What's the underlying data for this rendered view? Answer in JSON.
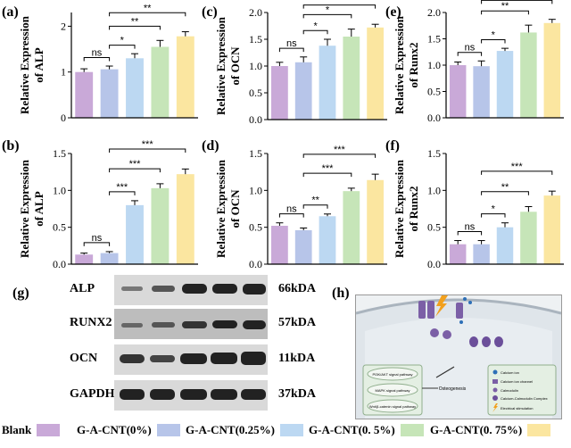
{
  "colors": {
    "blank": "#c9a9d8",
    "g0": "#b7c5e9",
    "g025": "#bcd8f2",
    "g05": "#c6e5b8",
    "g075": "#fbe6a0"
  },
  "chart_data": [
    {
      "panel": "(a)",
      "type": "bar",
      "ylabel": "Relative Expression of ALP",
      "ylim": [
        0,
        2.3
      ],
      "ticks": [
        "0",
        "1",
        "2"
      ],
      "tickvals": [
        0,
        1,
        2
      ],
      "values": [
        1.0,
        1.06,
        1.3,
        1.55,
        1.78
      ],
      "errors": [
        0.07,
        0.07,
        0.1,
        0.14,
        0.1
      ],
      "brackets": [
        {
          "from": 0,
          "to": 1,
          "label": "ns"
        },
        {
          "from": 1,
          "to": 2,
          "label": "*"
        },
        {
          "from": 1,
          "to": 3,
          "label": "**"
        },
        {
          "from": 1,
          "to": 4,
          "label": "**"
        }
      ]
    },
    {
      "panel": "(b)",
      "type": "bar",
      "ylabel": "Relative Expression of ALP",
      "ylim": [
        0,
        1.5
      ],
      "ticks": [
        "0.0",
        "0.5",
        "1.0",
        "1.5"
      ],
      "tickvals": [
        0,
        0.5,
        1.0,
        1.5
      ],
      "values": [
        0.13,
        0.15,
        0.8,
        1.03,
        1.22
      ],
      "errors": [
        0.02,
        0.02,
        0.06,
        0.06,
        0.07
      ],
      "brackets": [
        {
          "from": 0,
          "to": 1,
          "label": "ns"
        },
        {
          "from": 1,
          "to": 2,
          "label": "***"
        },
        {
          "from": 1,
          "to": 3,
          "label": "***"
        },
        {
          "from": 1,
          "to": 4,
          "label": "***"
        }
      ]
    },
    {
      "panel": "(c)",
      "type": "bar",
      "ylabel": "Relative Expression of OCN",
      "ylim": [
        0,
        2.0
      ],
      "ticks": [
        "0.0",
        "0.5",
        "1.0",
        "1.5",
        "2.0"
      ],
      "tickvals": [
        0,
        0.5,
        1.0,
        1.5,
        2.0
      ],
      "values": [
        1.0,
        1.07,
        1.38,
        1.55,
        1.72
      ],
      "errors": [
        0.07,
        0.1,
        0.12,
        0.14,
        0.06
      ],
      "brackets": [
        {
          "from": 0,
          "to": 1,
          "label": "ns"
        },
        {
          "from": 1,
          "to": 2,
          "label": "*"
        },
        {
          "from": 1,
          "to": 3,
          "label": "*"
        },
        {
          "from": 1,
          "to": 4,
          "label": "**"
        }
      ]
    },
    {
      "panel": "(d)",
      "type": "bar",
      "ylabel": "Relative Expression of OCN",
      "ylim": [
        0,
        1.5
      ],
      "ticks": [
        "0.0",
        "0.5",
        "1.0",
        "1.5"
      ],
      "tickvals": [
        0,
        0.5,
        1.0,
        1.5
      ],
      "values": [
        0.52,
        0.46,
        0.65,
        0.99,
        1.14
      ],
      "errors": [
        0.04,
        0.03,
        0.03,
        0.04,
        0.08
      ],
      "brackets": [
        {
          "from": 0,
          "to": 1,
          "label": "ns"
        },
        {
          "from": 1,
          "to": 2,
          "label": "**"
        },
        {
          "from": 1,
          "to": 3,
          "label": "***"
        },
        {
          "from": 1,
          "to": 4,
          "label": "***"
        }
      ]
    },
    {
      "panel": "(e)",
      "type": "bar",
      "ylabel": "Relative Expression of Runx2",
      "ylim": [
        0,
        2.0
      ],
      "ticks": [
        "0.0",
        "0.5",
        "1.0",
        "1.5",
        "2.0"
      ],
      "tickvals": [
        0,
        0.5,
        1.0,
        1.5,
        2.0
      ],
      "values": [
        1.0,
        0.98,
        1.27,
        1.62,
        1.8
      ],
      "errors": [
        0.06,
        0.1,
        0.05,
        0.14,
        0.07
      ],
      "brackets": [
        {
          "from": 0,
          "to": 1,
          "label": "ns"
        },
        {
          "from": 1,
          "to": 2,
          "label": "*"
        },
        {
          "from": 1,
          "to": 3,
          "label": "**"
        },
        {
          "from": 1,
          "to": 4,
          "label": "***"
        }
      ]
    },
    {
      "panel": "(f)",
      "type": "bar",
      "ylabel": "Relative Expression of Runx2",
      "ylim": [
        0,
        1.5
      ],
      "ticks": [
        "0.0",
        "0.5",
        "1.0",
        "1.5"
      ],
      "tickvals": [
        0,
        0.5,
        1.0,
        1.5
      ],
      "values": [
        0.27,
        0.27,
        0.5,
        0.71,
        0.93
      ],
      "errors": [
        0.05,
        0.05,
        0.06,
        0.07,
        0.06
      ],
      "brackets": [
        {
          "from": 0,
          "to": 1,
          "label": "ns"
        },
        {
          "from": 1,
          "to": 2,
          "label": "*"
        },
        {
          "from": 1,
          "to": 3,
          "label": "**"
        },
        {
          "from": 1,
          "to": 4,
          "label": "***"
        }
      ]
    }
  ],
  "blot": {
    "label": "(g)",
    "rows": [
      {
        "name": "ALP",
        "kda": "66kDA"
      },
      {
        "name": "RUNX2",
        "kda": "57kDA"
      },
      {
        "name": "OCN",
        "kda": "11kDA"
      },
      {
        "name": "GAPDH",
        "kda": "37kDA"
      }
    ]
  },
  "diagram": {
    "label": "(h)",
    "pathways": [
      "PI3K/AKT signal pathway",
      "MAPK signal pathway",
      "Wnt/β-catenin signal pathway"
    ],
    "outcome": "Osteogenesis",
    "key": [
      "Calcium ion",
      "Calcium ion channel",
      "Calmodulin",
      "Calcium-Calmodulin Complex",
      "Electrical stimulation"
    ]
  },
  "legend": {
    "items": [
      "Blank",
      "G-A-CNT(0%)",
      "G-A-CNT(0.25%)",
      "G-A-CNT(0. 5%)",
      "G-A-CNT(0. 75%)"
    ]
  }
}
